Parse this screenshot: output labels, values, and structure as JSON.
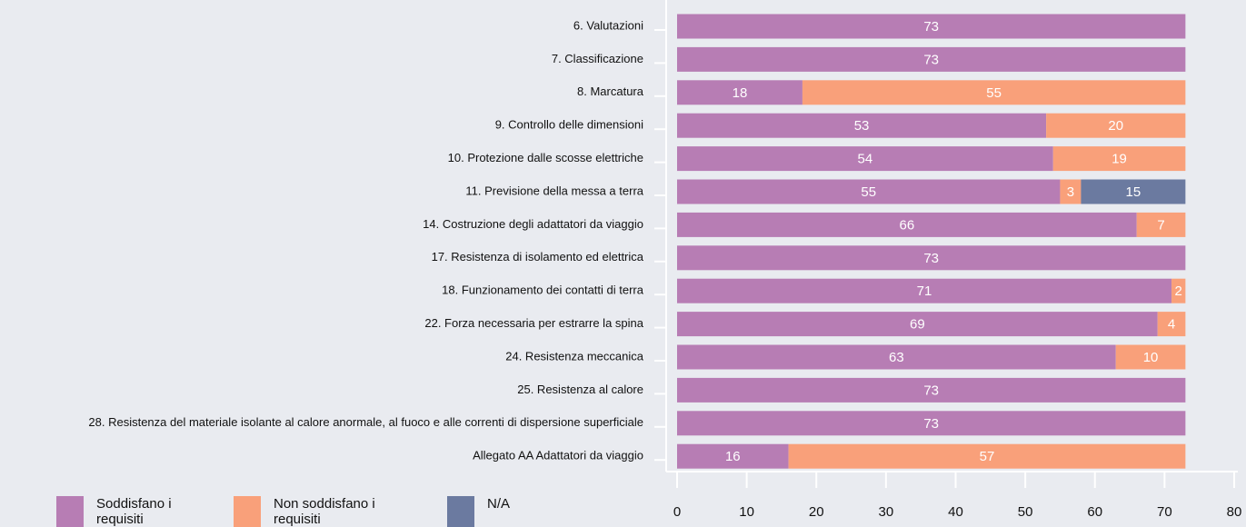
{
  "chart_data": {
    "type": "stacked_barh",
    "categories": [
      "6. Valutazioni",
      "7. Classificazione",
      "8. Marcatura",
      "9. Controllo delle dimensioni",
      "10. Protezione dalle scosse elettriche",
      "11. Previsione della messa a terra",
      "14. Costruzione degli adattatori da viaggio",
      "17. Resistenza di isolamento ed elettrica",
      "18. Funzionamento dei contatti di terra",
      "22. Forza necessaria per estrarre la spina",
      "24. Resistenza meccanica",
      "25. Resistenza al calore",
      "28. Resistenza del materiale isolante al calore anormale, al fuoco e alle correnti di dispersione superficiale",
      "Allegato AA Adattatori da viaggio"
    ],
    "series": [
      {
        "name": "Soddisfano i requisiti",
        "color": "#b77db4",
        "values": [
          73,
          73,
          18,
          53,
          54,
          55,
          66,
          73,
          71,
          69,
          63,
          73,
          73,
          16
        ]
      },
      {
        "name": "Non soddisfano i requisiti",
        "color": "#f9a07a",
        "values": [
          null,
          null,
          55,
          20,
          19,
          3,
          7,
          null,
          2,
          4,
          10,
          null,
          null,
          57
        ]
      },
      {
        "name": "N/A",
        "color": "#6b7aa0",
        "values": [
          null,
          null,
          null,
          null,
          null,
          15,
          null,
          null,
          null,
          null,
          null,
          null,
          null,
          null
        ]
      }
    ],
    "xlim": [
      0,
      80
    ],
    "xticks": [
      0,
      10,
      20,
      30,
      40,
      50,
      60,
      70,
      80
    ]
  }
}
